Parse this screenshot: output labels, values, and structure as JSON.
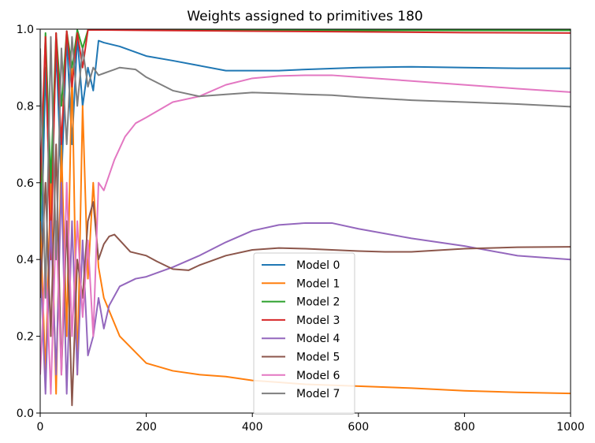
{
  "chart_data": {
    "type": "line",
    "title": "Weights assigned to primitives 180",
    "xlabel": "",
    "ylabel": "",
    "xlim": [
      0,
      1000
    ],
    "ylim": [
      0,
      1.0
    ],
    "xticks": [
      0,
      200,
      400,
      600,
      800,
      1000
    ],
    "xtick_labels": [
      "0",
      "200",
      "400",
      "600",
      "800",
      "1000"
    ],
    "yticks": [
      0.0,
      0.2,
      0.4,
      0.6,
      0.8,
      1.0
    ],
    "ytick_labels": [
      "0.0",
      "0.2",
      "0.4",
      "0.6",
      "0.8",
      "1.0"
    ],
    "grid": false,
    "legend_position": "lower-center",
    "series": [
      {
        "name": "Model 0",
        "color": "#1f77b4",
        "x": [
          0,
          10,
          20,
          30,
          40,
          50,
          60,
          70,
          80,
          90,
          100,
          110,
          120,
          150,
          200,
          250,
          300,
          350,
          400,
          450,
          500,
          600,
          700,
          800,
          900,
          1000
        ],
        "y": [
          0.3,
          0.9,
          0.5,
          0.95,
          0.6,
          0.98,
          0.7,
          0.98,
          0.8,
          0.9,
          0.84,
          0.97,
          0.965,
          0.955,
          0.93,
          0.918,
          0.905,
          0.892,
          0.892,
          0.892,
          0.895,
          0.9,
          0.902,
          0.9,
          0.898,
          0.898
        ]
      },
      {
        "name": "Model 1",
        "color": "#ff7f0e",
        "x": [
          0,
          10,
          20,
          30,
          40,
          50,
          60,
          70,
          80,
          90,
          100,
          110,
          120,
          150,
          200,
          250,
          300,
          350,
          400,
          450,
          500,
          600,
          700,
          800,
          900,
          1000
        ],
        "y": [
          0.5,
          0.1,
          0.6,
          0.05,
          0.7,
          0.2,
          0.9,
          0.1,
          0.8,
          0.35,
          0.6,
          0.38,
          0.3,
          0.2,
          0.13,
          0.11,
          0.1,
          0.095,
          0.085,
          0.08,
          0.075,
          0.07,
          0.065,
          0.058,
          0.054,
          0.051
        ]
      },
      {
        "name": "Model 2",
        "color": "#2ca02c",
        "x": [
          0,
          10,
          20,
          30,
          40,
          50,
          60,
          70,
          80,
          90,
          100,
          120,
          200,
          400,
          600,
          800,
          1000
        ],
        "y": [
          0.5,
          0.99,
          0.6,
          0.99,
          0.8,
          0.995,
          0.9,
          0.998,
          0.95,
          0.998,
          0.998,
          0.998,
          0.998,
          0.997,
          0.997,
          0.997,
          0.997
        ]
      },
      {
        "name": "Model 3",
        "color": "#d62728",
        "x": [
          0,
          10,
          20,
          30,
          40,
          50,
          60,
          70,
          80,
          90,
          100,
          120,
          200,
          400,
          600,
          800,
          1000
        ],
        "y": [
          0.6,
          0.98,
          0.4,
          0.99,
          0.7,
          0.995,
          0.85,
          0.99,
          0.9,
          0.998,
          0.998,
          0.998,
          0.997,
          0.995,
          0.993,
          0.991,
          0.99
        ]
      },
      {
        "name": "Model 4",
        "color": "#9467bd",
        "x": [
          0,
          10,
          20,
          30,
          40,
          50,
          60,
          70,
          80,
          90,
          100,
          110,
          120,
          130,
          150,
          180,
          200,
          250,
          300,
          350,
          400,
          450,
          500,
          550,
          600,
          700,
          800,
          900,
          1000
        ],
        "y": [
          0.4,
          0.05,
          0.5,
          0.1,
          0.6,
          0.05,
          0.5,
          0.1,
          0.45,
          0.15,
          0.2,
          0.3,
          0.22,
          0.28,
          0.33,
          0.35,
          0.355,
          0.38,
          0.41,
          0.445,
          0.475,
          0.49,
          0.495,
          0.495,
          0.48,
          0.455,
          0.435,
          0.41,
          0.4
        ]
      },
      {
        "name": "Model 5",
        "color": "#8c564b",
        "x": [
          0,
          10,
          20,
          30,
          40,
          50,
          60,
          70,
          80,
          90,
          100,
          110,
          120,
          130,
          140,
          150,
          170,
          200,
          220,
          250,
          280,
          300,
          350,
          400,
          450,
          500,
          550,
          600,
          650,
          700,
          800,
          900,
          1000
        ],
        "y": [
          0.3,
          0.6,
          0.2,
          0.7,
          0.1,
          0.5,
          0.02,
          0.4,
          0.3,
          0.5,
          0.55,
          0.4,
          0.44,
          0.46,
          0.465,
          0.45,
          0.42,
          0.41,
          0.395,
          0.375,
          0.372,
          0.385,
          0.41,
          0.425,
          0.43,
          0.428,
          0.425,
          0.422,
          0.42,
          0.42,
          0.428,
          0.432,
          0.433
        ]
      },
      {
        "name": "Model 6",
        "color": "#e377c2",
        "x": [
          0,
          10,
          20,
          30,
          40,
          50,
          60,
          70,
          80,
          90,
          100,
          110,
          120,
          140,
          160,
          180,
          200,
          250,
          300,
          350,
          400,
          450,
          500,
          550,
          600,
          700,
          800,
          900,
          1000
        ],
        "y": [
          0.1,
          0.4,
          0.05,
          0.5,
          0.1,
          0.6,
          0.2,
          0.5,
          0.25,
          0.45,
          0.2,
          0.6,
          0.58,
          0.66,
          0.72,
          0.755,
          0.77,
          0.81,
          0.825,
          0.855,
          0.872,
          0.878,
          0.88,
          0.88,
          0.875,
          0.865,
          0.855,
          0.845,
          0.836
        ]
      },
      {
        "name": "Model 7",
        "color": "#7f7f7f",
        "x": [
          0,
          10,
          20,
          30,
          40,
          50,
          60,
          70,
          80,
          90,
          100,
          110,
          120,
          130,
          140,
          150,
          180,
          200,
          250,
          300,
          350,
          400,
          450,
          500,
          550,
          600,
          700,
          800,
          900,
          1000
        ],
        "y": [
          0.95,
          0.3,
          0.98,
          0.4,
          0.95,
          0.7,
          0.98,
          0.8,
          0.95,
          0.85,
          0.9,
          0.88,
          0.885,
          0.89,
          0.895,
          0.9,
          0.895,
          0.875,
          0.84,
          0.825,
          0.83,
          0.835,
          0.833,
          0.83,
          0.828,
          0.823,
          0.815,
          0.81,
          0.805,
          0.798
        ]
      }
    ]
  }
}
